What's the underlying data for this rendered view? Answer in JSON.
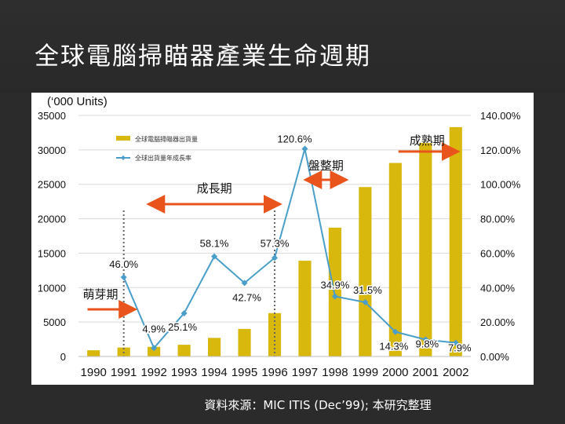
{
  "slide": {
    "title": "全球電腦掃瞄器產業生命週期",
    "source": "資料來源：MIC  ITIS (Dec’99); 本研究整理"
  },
  "chart_data": {
    "type": "bar+line",
    "units_label": "(‘000 Units)",
    "categories": [
      "1990",
      "1991",
      "1992",
      "1993",
      "1994",
      "1995",
      "1996",
      "1997",
      "1998",
      "1999",
      "2000",
      "2001",
      "2002"
    ],
    "series": [
      {
        "name": "全球電腦掃瞄器出貨量",
        "type": "bar",
        "axis": "left",
        "color": "#d9b80e",
        "values": [
          900,
          1300,
          1400,
          1700,
          2700,
          4000,
          6300,
          13900,
          18700,
          24600,
          28100,
          31000,
          33300
        ]
      },
      {
        "name": "全球出貨量年成長率",
        "type": "line",
        "axis": "right",
        "color": "#4a9ec9",
        "values": [
          null,
          46.0,
          4.9,
          25.1,
          58.1,
          42.7,
          57.3,
          120.6,
          34.9,
          31.5,
          14.3,
          9.8,
          7.9
        ],
        "labels": [
          "",
          "46.0%",
          "4.9%",
          "25.1%",
          "58.1%",
          "42.7%",
          "57.3%",
          "120.6%",
          "34.9%",
          "31.5%",
          "14.3%",
          "9.8%",
          "7.9%"
        ]
      }
    ],
    "left_axis": {
      "min": 0,
      "max": 35000,
      "ticks": [
        "0",
        "5000",
        "10000",
        "15000",
        "20000",
        "25000",
        "30000",
        "35000"
      ]
    },
    "right_axis": {
      "min": 0,
      "max": 140,
      "ticks": [
        "0.00%",
        "20.00%",
        "40.00%",
        "60.00%",
        "80.00%",
        "100.00%",
        "120.00%",
        "140.00%"
      ]
    },
    "legend_position": "top-left",
    "phases": [
      {
        "label": "萌芽期",
        "from": 0.3,
        "to": 1.8
      },
      {
        "label": "成長期",
        "from": 2.4,
        "to": 6.6
      },
      {
        "label": "盤整期",
        "from": 7.6,
        "to": 8.8
      },
      {
        "label": "成熟期",
        "from": 10.6,
        "to": 12.5
      }
    ],
    "phase_dividers": [
      1.5,
      6.5
    ]
  }
}
